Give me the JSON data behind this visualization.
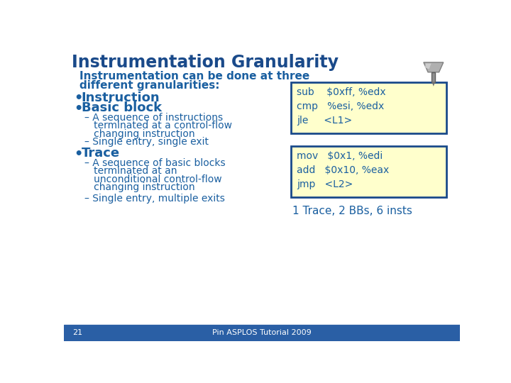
{
  "title": "Instrumentation Granularity",
  "title_color": "#1a4a8a",
  "bg_color": "#ffffff",
  "footer_bg": "#2a5fa5",
  "footer_text": "Pin ASPLOS Tutorial 2009",
  "footer_page": "21",
  "body_color": "#1a5fa0",
  "intro_line1": "Instrumentation can be done at three",
  "intro_line2": "different granularities:",
  "bullet1": "Instruction",
  "bullet2": "Basic block",
  "sub2a_line1": "– A sequence of instructions",
  "sub2a_line2": "   terminated at a control-flow",
  "sub2a_line3": "   changing instruction",
  "sub2b": "– Single entry, single exit",
  "bullet3": "Trace",
  "sub3a_line1": "– A sequence of basic blocks",
  "sub3a_line2": "   terminated at an",
  "sub3a_line3": "   unconditional control-flow",
  "sub3a_line4": "   changing instruction",
  "sub3b": "– Single entry, multiple exits",
  "box1_line1": "sub    $0xff, %edx",
  "box1_line2": "cmp   %esi, %edx",
  "box1_line3": "jle     <L1>",
  "box2_line1": "mov   $0x1, %edi",
  "box2_line2": "add   $0x10, %eax",
  "box2_line3": "jmp   <L2>",
  "box_bg": "#ffffcc",
  "box_border": "#1a4a8a",
  "caption": "1 Trace, 2 BBs, 6 insts",
  "code_color": "#1a5fa0"
}
